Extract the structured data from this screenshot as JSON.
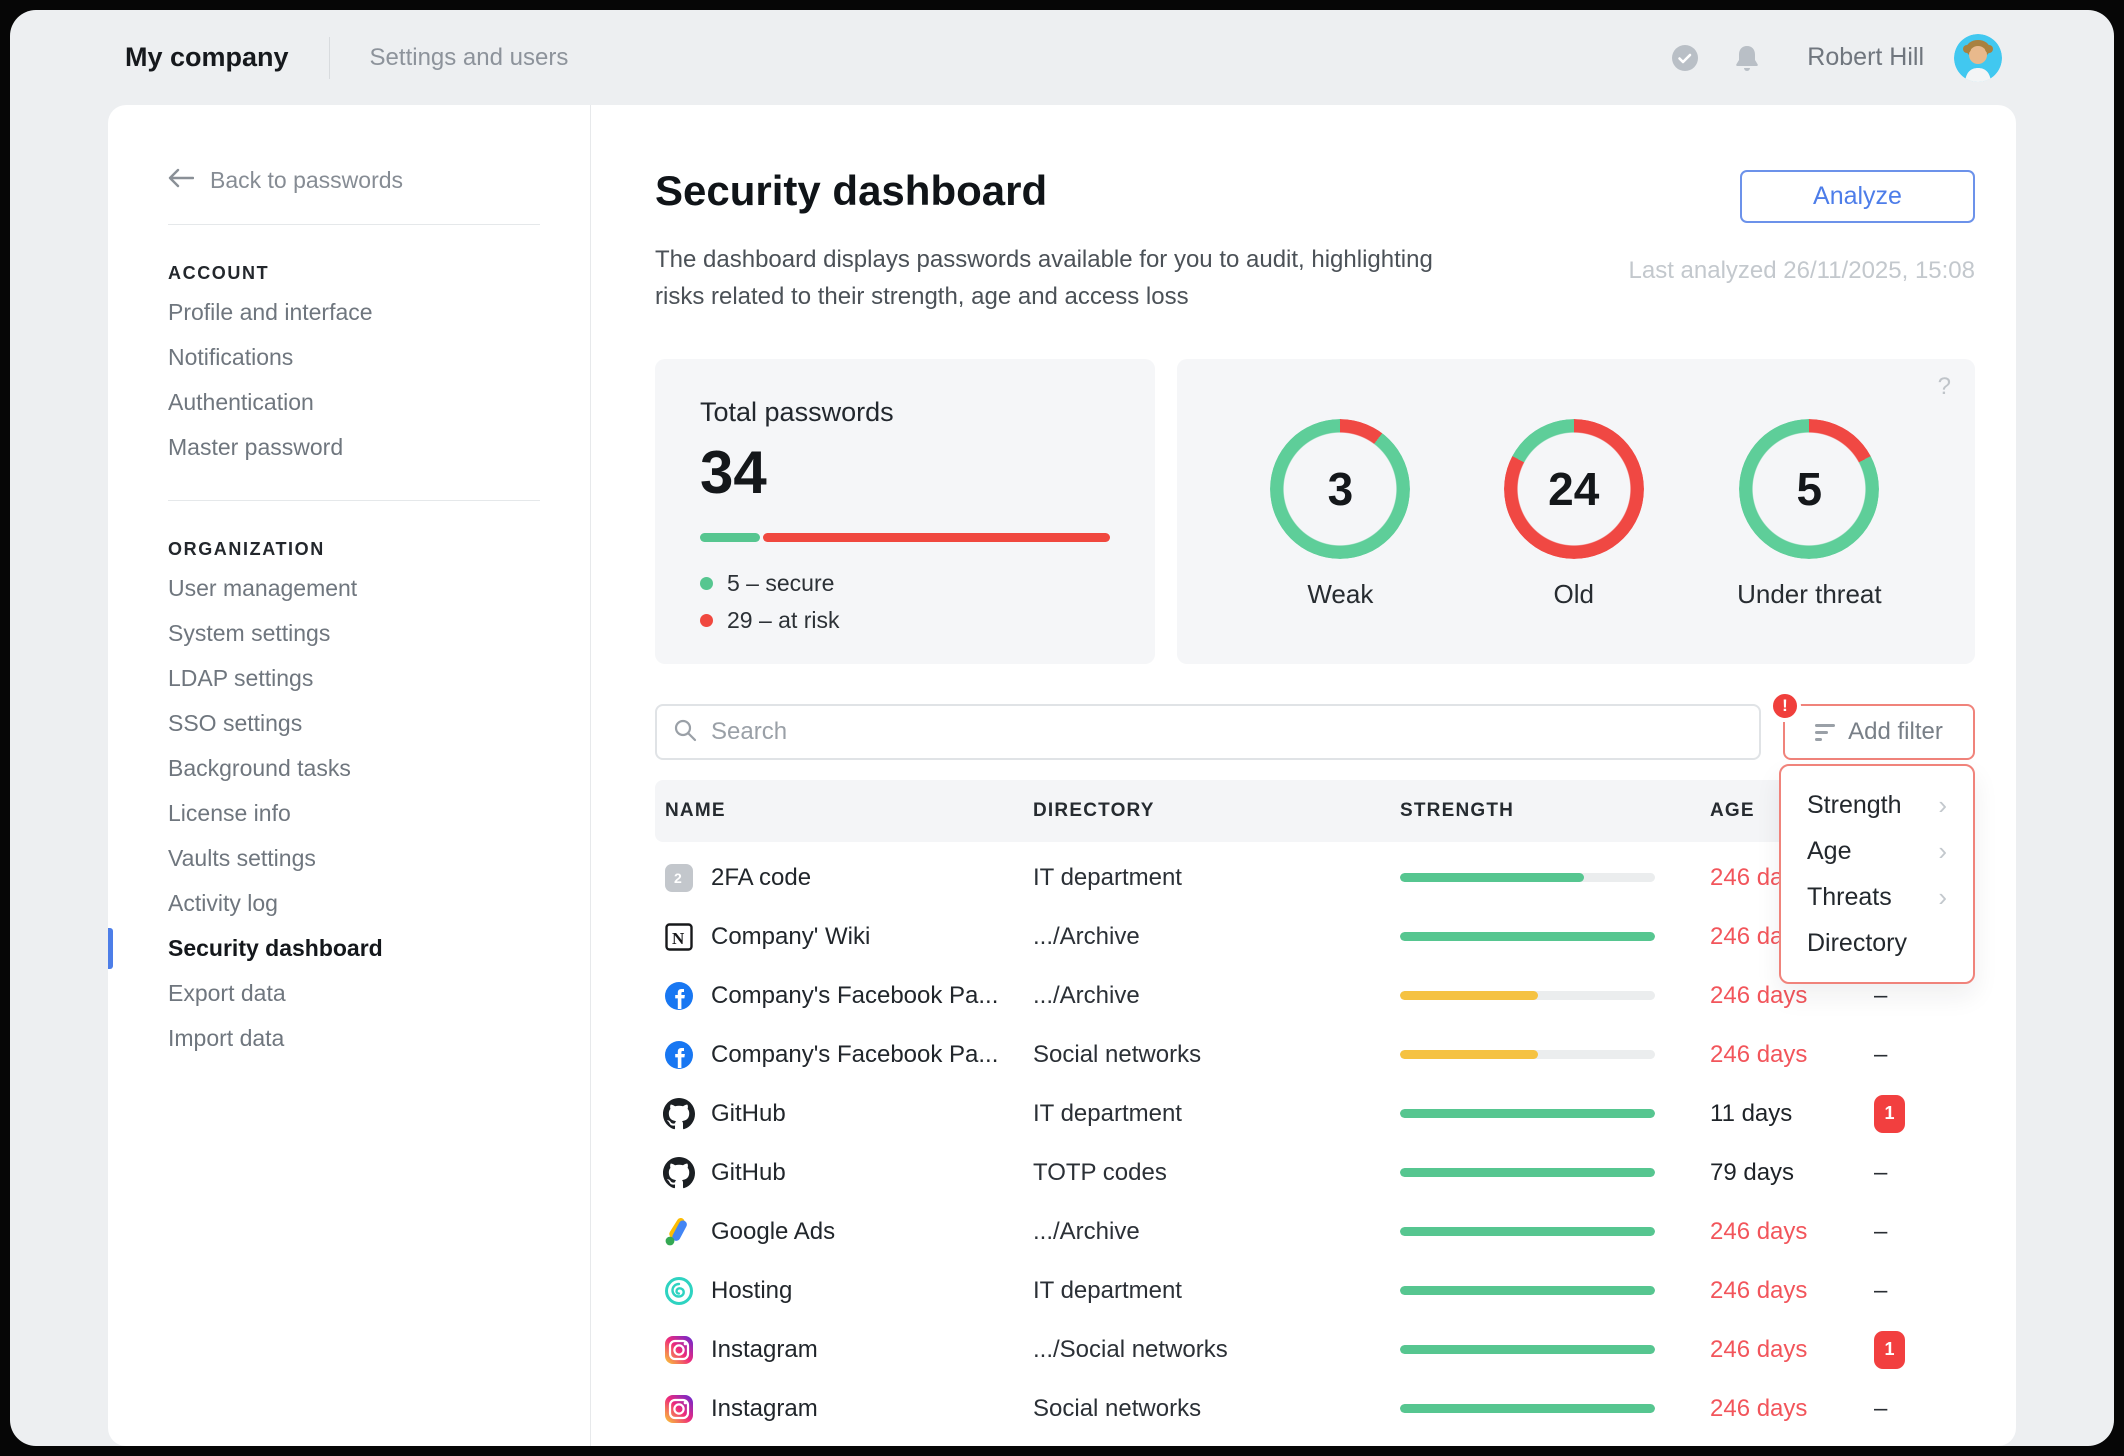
{
  "colors": {
    "green": "#56C690",
    "red": "#F0483F",
    "yellow": "#F5C242",
    "age_risk": "#F2555B",
    "age_ok": "#1E2328",
    "ring_red": "#F04843",
    "ring_green": "#5ECE99",
    "accent_blue": "#4D7DE9",
    "alert_salmon": "#F0837B"
  },
  "topbar": {
    "brand": "My company",
    "section": "Settings and users",
    "user": "Robert Hill"
  },
  "sidebar": {
    "back": "Back to passwords",
    "sections": [
      {
        "title": "ACCOUNT",
        "items": [
          {
            "label": "Profile and interface",
            "active": false
          },
          {
            "label": "Notifications",
            "active": false
          },
          {
            "label": "Authentication",
            "active": false
          },
          {
            "label": "Master password",
            "active": false
          }
        ]
      },
      {
        "title": "ORGANIZATION",
        "items": [
          {
            "label": "User management",
            "active": false
          },
          {
            "label": "System settings",
            "active": false
          },
          {
            "label": "LDAP settings",
            "active": false
          },
          {
            "label": "SSO settings",
            "active": false
          },
          {
            "label": "Background tasks",
            "active": false
          },
          {
            "label": "License info",
            "active": false
          },
          {
            "label": "Vaults settings",
            "active": false
          },
          {
            "label": "Activity log",
            "active": false
          },
          {
            "label": "Security dashboard",
            "active": true
          },
          {
            "label": "Export data",
            "active": false
          },
          {
            "label": "Import data",
            "active": false
          }
        ]
      }
    ]
  },
  "header": {
    "title": "Security dashboard",
    "description": "The dashboard displays passwords available for you to audit, highlighting risks related to their strength, age and access loss",
    "analyze_label": "Analyze",
    "last_analyzed": "Last analyzed 26/11/2025, 15:08"
  },
  "totals": {
    "title": "Total passwords",
    "total": "34",
    "secure_count": 5,
    "at_risk_count": 29,
    "legend": [
      {
        "text": "5 – secure",
        "color_key": "green"
      },
      {
        "text": "29 – at risk",
        "color_key": "red"
      }
    ]
  },
  "rings": {
    "help": "?",
    "at_risk_total": 29,
    "items": [
      {
        "value": "3",
        "count": 3,
        "label": "Weak"
      },
      {
        "value": "24",
        "count": 24,
        "label": "Old"
      },
      {
        "value": "5",
        "count": 5,
        "label": "Under threat"
      }
    ]
  },
  "chart_data": [
    {
      "type": "donut",
      "title": "Weak",
      "values": [
        3,
        26
      ],
      "labels": [
        "at risk",
        "rest"
      ],
      "center_value": 3
    },
    {
      "type": "donut",
      "title": "Old",
      "values": [
        24,
        5
      ],
      "labels": [
        "at risk",
        "rest"
      ],
      "center_value": 24
    },
    {
      "type": "donut",
      "title": "Under threat",
      "values": [
        5,
        24
      ],
      "labels": [
        "at risk",
        "rest"
      ],
      "center_value": 5
    },
    {
      "type": "bar",
      "title": "Total passwords",
      "categories": [
        "secure",
        "at risk"
      ],
      "values": [
        5,
        29
      ],
      "ylim": [
        0,
        34
      ]
    }
  ],
  "toolbar": {
    "search_placeholder": "Search",
    "add_filter_label": "Add filter",
    "alert_badge": "!",
    "dropdown": [
      {
        "label": "Strength",
        "chevron": true
      },
      {
        "label": "Age",
        "chevron": true
      },
      {
        "label": "Threats",
        "chevron": true
      },
      {
        "label": "Directory",
        "chevron": false
      }
    ]
  },
  "table": {
    "headers": [
      "NAME",
      "DIRECTORY",
      "STRENGTH",
      "AGE",
      ""
    ],
    "rows": [
      {
        "icon": "twofa",
        "name": "2FA code",
        "directory": "IT department",
        "strength_pct": 72,
        "strength_color": "green",
        "age": "246 days",
        "age_risk": true,
        "threat": ""
      },
      {
        "icon": "notion",
        "name": "Company' Wiki",
        "directory": ".../Archive",
        "strength_pct": 100,
        "strength_color": "green",
        "age": "246 days",
        "age_risk": true,
        "threat": ""
      },
      {
        "icon": "facebook",
        "name": "Company's Facebook Pa...",
        "directory": ".../Archive",
        "strength_pct": 54,
        "strength_color": "yellow",
        "age": "246 days",
        "age_risk": true,
        "threat": "dash"
      },
      {
        "icon": "facebook",
        "name": "Company's Facebook Pa...",
        "directory": "Social networks",
        "strength_pct": 54,
        "strength_color": "yellow",
        "age": "246 days",
        "age_risk": true,
        "threat": "dash"
      },
      {
        "icon": "github",
        "name": "GitHub",
        "directory": "IT department",
        "strength_pct": 100,
        "strength_color": "green",
        "age": "11 days",
        "age_risk": false,
        "threat": "1"
      },
      {
        "icon": "github",
        "name": "GitHub",
        "directory": "TOTP codes",
        "strength_pct": 100,
        "strength_color": "green",
        "age": "79 days",
        "age_risk": false,
        "threat": "dash"
      },
      {
        "icon": "googleads",
        "name": "Google Ads",
        "directory": ".../Archive",
        "strength_pct": 100,
        "strength_color": "green",
        "age": "246 days",
        "age_risk": true,
        "threat": "dash"
      },
      {
        "icon": "hosting",
        "name": "Hosting",
        "directory": "IT department",
        "strength_pct": 100,
        "strength_color": "green",
        "age": "246 days",
        "age_risk": true,
        "threat": "dash"
      },
      {
        "icon": "instagram",
        "name": "Instagram",
        "directory": ".../Social networks",
        "strength_pct": 100,
        "strength_color": "green",
        "age": "246 days",
        "age_risk": true,
        "threat": "1"
      },
      {
        "icon": "instagram",
        "name": "Instagram",
        "directory": "Social networks",
        "strength_pct": 100,
        "strength_color": "green",
        "age": "246 days",
        "age_risk": true,
        "threat": "dash"
      }
    ]
  }
}
